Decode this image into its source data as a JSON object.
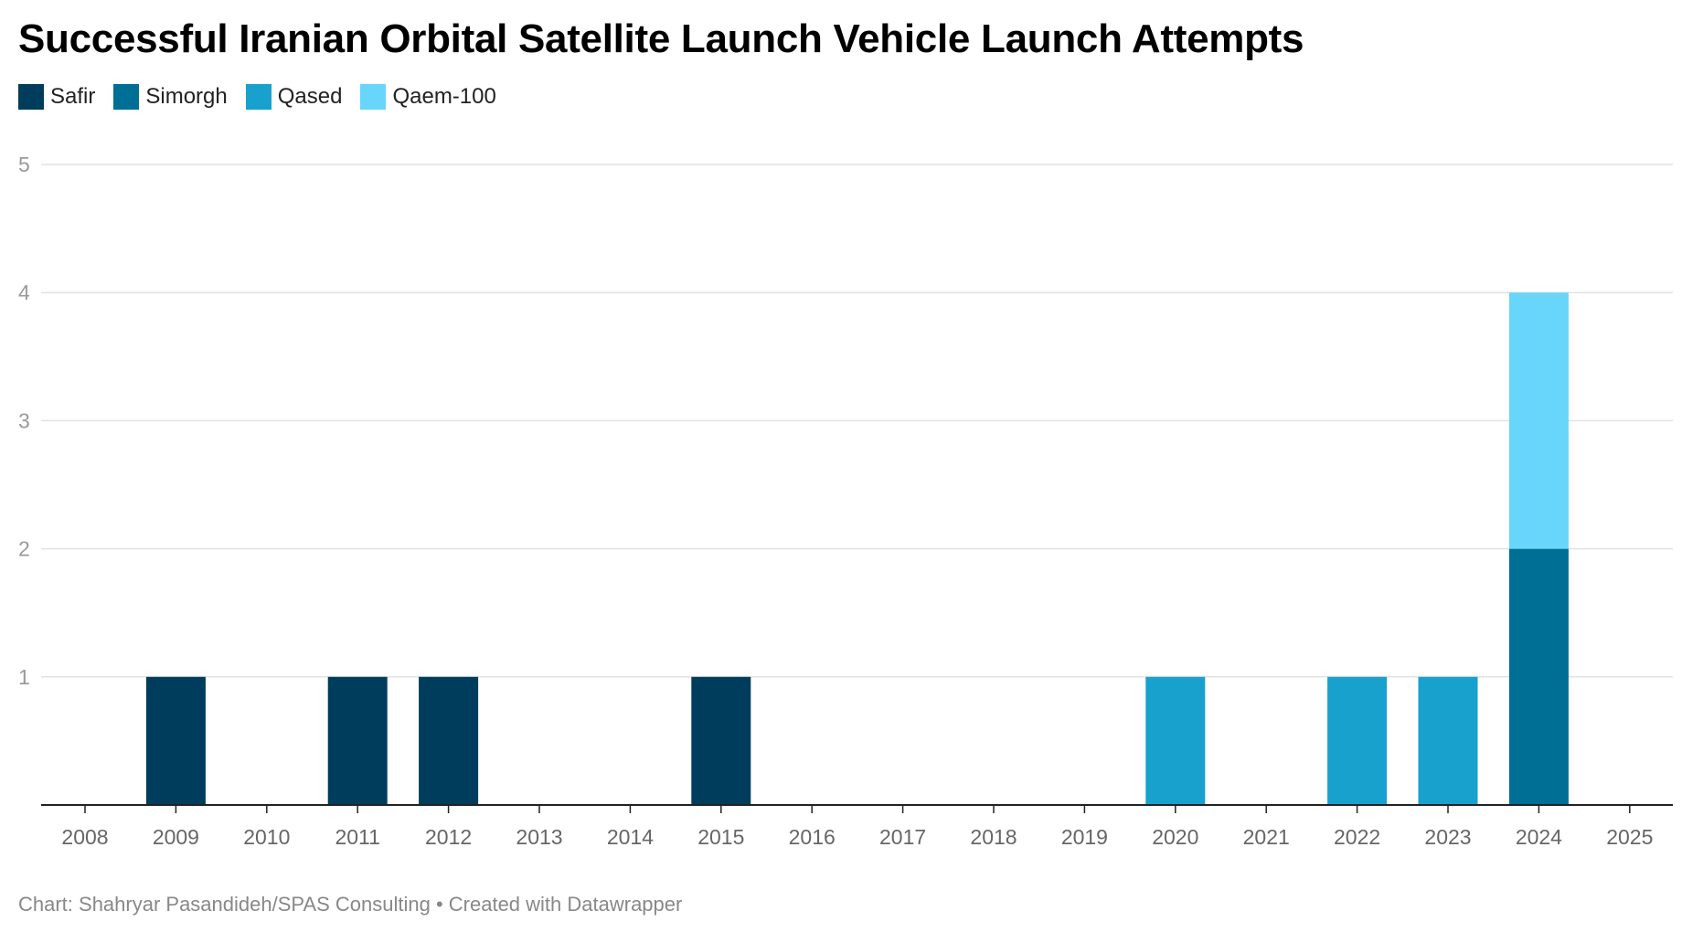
{
  "chart_data": {
    "type": "bar",
    "stacked": true,
    "title": "Successful Iranian Orbital Satellite Launch Vehicle Launch Attempts",
    "xlabel": "",
    "ylabel": "",
    "ylim": [
      0,
      5
    ],
    "yticks": [
      1,
      2,
      3,
      4,
      5
    ],
    "grid": true,
    "legend_position": "top-left",
    "categories": [
      "2008",
      "2009",
      "2010",
      "2011",
      "2012",
      "2013",
      "2014",
      "2015",
      "2016",
      "2017",
      "2018",
      "2019",
      "2020",
      "2021",
      "2022",
      "2023",
      "2024",
      "2025"
    ],
    "series": [
      {
        "name": "Safir",
        "color": "#003d5c",
        "values": [
          0,
          1,
          0,
          1,
          1,
          0,
          0,
          1,
          0,
          0,
          0,
          0,
          0,
          0,
          0,
          0,
          0,
          0
        ]
      },
      {
        "name": "Simorgh",
        "color": "#006f96",
        "values": [
          0,
          0,
          0,
          0,
          0,
          0,
          0,
          0,
          0,
          0,
          0,
          0,
          0,
          0,
          0,
          0,
          2,
          0
        ]
      },
      {
        "name": "Qased",
        "color": "#18a1cd",
        "values": [
          0,
          0,
          0,
          0,
          0,
          0,
          0,
          0,
          0,
          0,
          0,
          0,
          1,
          0,
          1,
          1,
          0,
          0
        ]
      },
      {
        "name": "Qaem-100",
        "color": "#68d6fb",
        "values": [
          0,
          0,
          0,
          0,
          0,
          0,
          0,
          0,
          0,
          0,
          0,
          0,
          0,
          0,
          0,
          0,
          2,
          0
        ]
      }
    ]
  },
  "footer": {
    "text": "Chart: Shahryar Pasandideh/SPAS Consulting • Created with Datawrapper"
  }
}
